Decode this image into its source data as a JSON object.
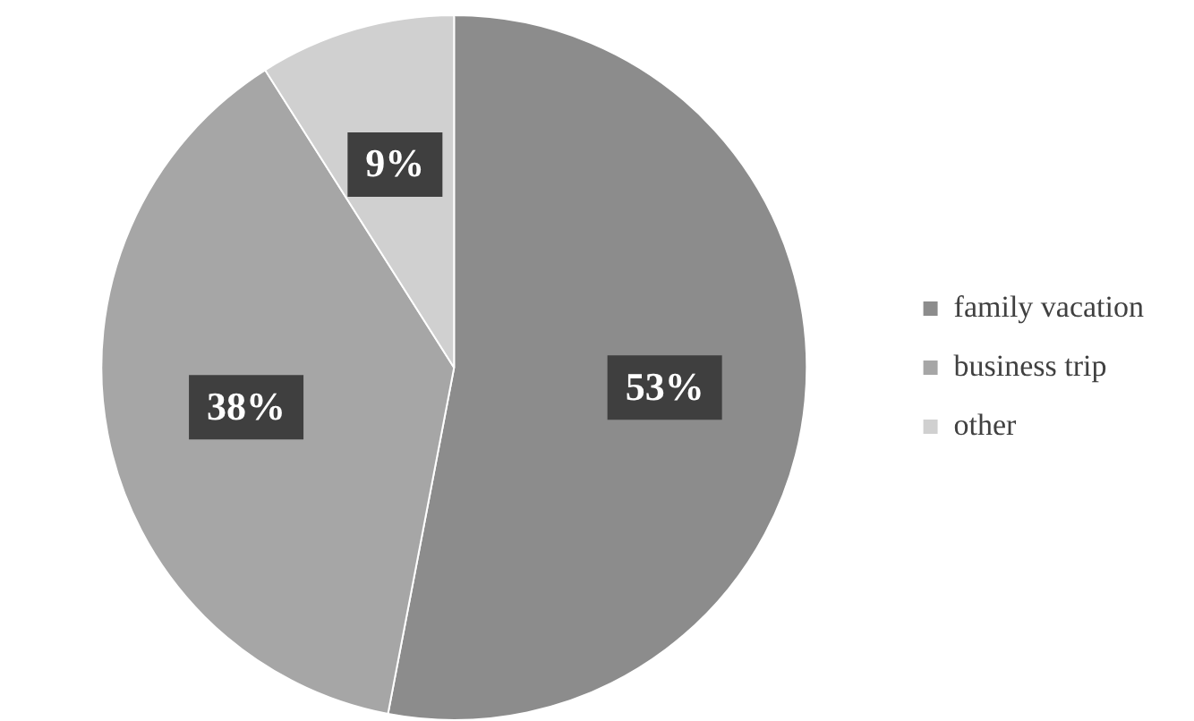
{
  "chart_data": {
    "type": "pie",
    "categories": [
      "family vacation",
      "business trip",
      "other"
    ],
    "values": [
      53,
      38,
      9
    ],
    "colors": [
      "#8c8c8c",
      "#a6a6a6",
      "#d0d0d0"
    ],
    "value_labels": [
      "53%",
      "38%",
      "9%"
    ],
    "legend": "right"
  }
}
